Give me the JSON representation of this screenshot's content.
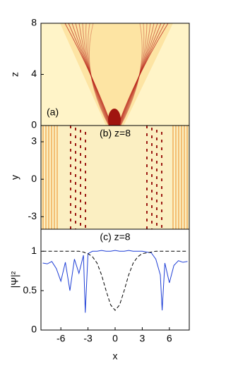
{
  "chart_data": [
    {
      "type": "heatmap",
      "label": "(a)",
      "ylabel": "z",
      "xlim": [
        -8.2,
        8.2
      ],
      "ylim": [
        0,
        8
      ],
      "yticks": [
        0,
        4,
        8
      ]
    },
    {
      "type": "heatmap",
      "label": "(b) z=8",
      "ylabel": "y",
      "xlim": [
        -8.2,
        8.2
      ],
      "ylim": [
        -4,
        4.3
      ],
      "yticks": [
        -3,
        0,
        3
      ]
    },
    {
      "type": "line",
      "label": "(c) z=8",
      "xlabel": "x",
      "ylabel": "|Ψ|²",
      "xlim": [
        -8.2,
        8.2
      ],
      "xticks": [
        -6,
        -3,
        0,
        3,
        6
      ],
      "ylim": [
        0,
        1.28
      ],
      "yticks": [
        0,
        0.5,
        1
      ],
      "x": [
        -8,
        -7.5,
        -7,
        -6.5,
        -6,
        -5.5,
        -5,
        -4.5,
        -4,
        -3.5,
        -3.3,
        -3,
        -2.5,
        -2,
        -1.5,
        -1,
        -0.5,
        0,
        0.5,
        1,
        1.5,
        2,
        2.5,
        3,
        3.5,
        4,
        4.5,
        5,
        5.2,
        5.5,
        6,
        6.5,
        7,
        7.5,
        8
      ],
      "series": [
        {
          "color": "#1f3fd6",
          "dashed": false,
          "values": [
            0.85,
            0.84,
            0.87,
            0.78,
            0.62,
            0.86,
            0.5,
            0.9,
            0.72,
            0.95,
            0.22,
            0.97,
            1,
            1,
            1.01,
            1,
            1,
            1.01,
            1,
            1,
            1.01,
            1,
            1,
            1,
            0.99,
            0.98,
            0.9,
            0.7,
            0.25,
            0.85,
            0.6,
            0.82,
            0.88,
            0.86,
            0.87
          ]
        },
        {
          "color": "#000000",
          "dashed": true,
          "values": [
            1,
            1,
            1,
            1,
            1,
            1,
            1,
            1,
            1,
            0.99,
            0.98,
            0.97,
            0.93,
            0.85,
            0.7,
            0.5,
            0.32,
            0.25,
            0.32,
            0.5,
            0.7,
            0.85,
            0.93,
            0.97,
            0.98,
            0.99,
            1,
            1,
            1,
            1,
            1,
            1,
            1,
            1,
            1
          ]
        }
      ]
    }
  ]
}
